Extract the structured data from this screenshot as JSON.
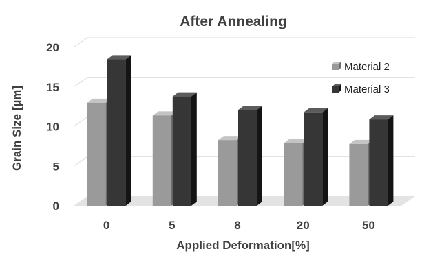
{
  "chart_data": {
    "type": "bar",
    "title": "After Annealing",
    "xlabel": "Applied Deformation[%]",
    "ylabel": "Grain Size [µm]",
    "categories": [
      "0",
      "5",
      "8",
      "20",
      "50"
    ],
    "series": [
      {
        "name": "Material 2",
        "values": [
          13.0,
          11.4,
          8.3,
          7.9,
          7.8
        ]
      },
      {
        "name": "Material 3",
        "values": [
          18.5,
          13.8,
          12.1,
          11.8,
          10.9
        ]
      }
    ],
    "ylim": [
      0,
      20
    ],
    "yticks": [
      "0",
      "5",
      "10",
      "15",
      "20"
    ],
    "grid": true,
    "legend_position": "right",
    "style": "3d-column",
    "colors": {
      "series": [
        "#9a9a9a",
        "#363636"
      ],
      "series_side": [
        "#6e6e6e",
        "#141414"
      ],
      "series_top": [
        "#c4c4c4",
        "#5c5c5c"
      ],
      "gridline": "#d9d9d9",
      "floor": "#e3e3e3",
      "text": "#404040"
    }
  }
}
